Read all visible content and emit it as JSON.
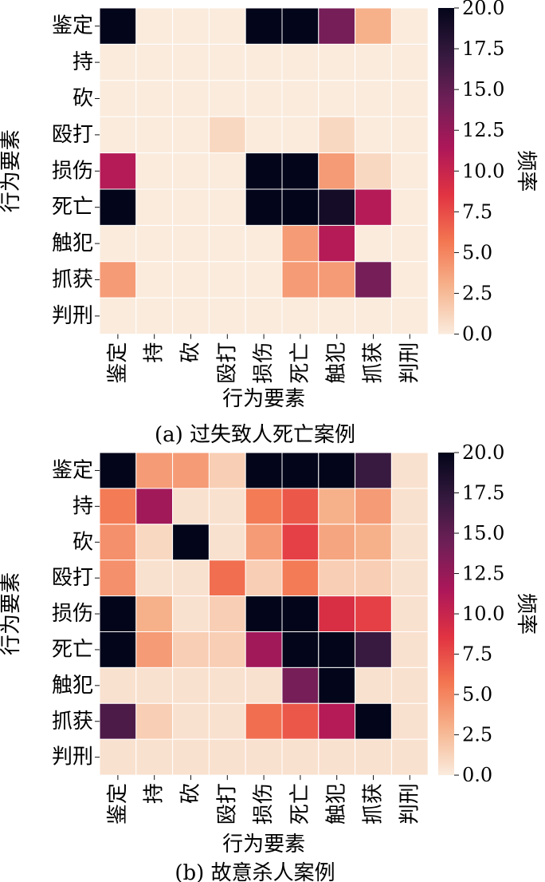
{
  "chart_data": [
    {
      "type": "heatmap",
      "caption": "(a) 过失致人死亡案例",
      "xlabel": "行为要素",
      "ylabel": "行为要素",
      "colorbar_label": "频率",
      "colorbar_ticks": [
        "0.0",
        "2.5",
        "5.0",
        "7.5",
        "10.0",
        "12.5",
        "15.0",
        "17.5",
        "20.0"
      ],
      "vmin": 0,
      "vmax": 20,
      "rows": [
        "鉴定",
        "持",
        "砍",
        "殴打",
        "损伤",
        "死亡",
        "触犯",
        "抓获",
        "判刑"
      ],
      "cols": [
        "鉴定",
        "持",
        "砍",
        "殴打",
        "损伤",
        "死亡",
        "触犯",
        "抓获",
        "判刑"
      ],
      "values": [
        [
          20,
          0,
          0,
          0,
          20,
          20,
          14,
          3,
          0
        ],
        [
          0,
          0,
          0,
          0,
          0,
          0,
          0,
          0,
          0
        ],
        [
          0,
          0,
          0,
          0,
          0,
          0,
          0,
          0,
          0
        ],
        [
          0,
          0,
          0,
          1,
          0,
          0,
          1,
          0,
          0
        ],
        [
          11,
          0,
          0,
          0,
          20,
          20,
          4,
          1,
          0
        ],
        [
          20,
          0,
          0,
          0,
          20,
          20,
          19,
          11,
          0
        ],
        [
          0,
          0,
          0,
          0,
          0,
          4,
          11,
          0,
          0
        ],
        [
          4,
          0,
          0,
          0,
          0,
          4,
          4,
          14,
          0
        ],
        [
          0,
          0,
          0,
          0,
          0,
          0,
          0,
          0,
          0
        ]
      ]
    },
    {
      "type": "heatmap",
      "caption": "(b) 故意杀人案例",
      "xlabel": "行为要素",
      "ylabel": "行为要素",
      "colorbar_label": "频率",
      "colorbar_ticks": [
        "0.0",
        "2.5",
        "5.0",
        "7.5",
        "10.0",
        "12.5",
        "15.0",
        "17.5",
        "20.0"
      ],
      "vmin": 0,
      "vmax": 20,
      "rows": [
        "鉴定",
        "持",
        "砍",
        "殴打",
        "损伤",
        "死亡",
        "触犯",
        "抓获",
        "判刑"
      ],
      "cols": [
        "鉴定",
        "持",
        "砍",
        "殴打",
        "损伤",
        "死亡",
        "触犯",
        "抓获",
        "判刑"
      ],
      "values": [
        [
          20,
          4,
          4,
          1.5,
          20,
          20,
          20,
          17,
          0.5
        ],
        [
          5.5,
          12,
          0.5,
          0.5,
          5.5,
          7,
          3,
          4,
          0.5
        ],
        [
          4.5,
          1,
          20,
          0.5,
          4,
          8,
          3.5,
          3,
          0.5
        ],
        [
          4.5,
          0.5,
          0.5,
          6,
          1.5,
          5.5,
          1.5,
          1.5,
          0.5
        ],
        [
          20,
          3,
          0.5,
          1.5,
          20,
          20,
          9,
          8,
          0.5
        ],
        [
          20,
          4,
          1.5,
          1.5,
          12,
          20,
          20,
          17,
          0.5
        ],
        [
          0.5,
          0.5,
          0.5,
          0.5,
          0.5,
          14,
          20,
          0.5,
          0.5
        ],
        [
          16,
          1.5,
          0.5,
          0.5,
          6,
          7,
          11,
          20,
          0.5
        ],
        [
          0.5,
          0.5,
          0.5,
          0.5,
          0.5,
          0.5,
          0.5,
          0.5,
          0.5
        ]
      ]
    }
  ],
  "colors": {
    "cmap_stops": [
      "#faebdd",
      "#f6b48e",
      "#f37651",
      "#e13342",
      "#ad1759",
      "#701f57",
      "#35193e",
      "#03051a"
    ]
  }
}
